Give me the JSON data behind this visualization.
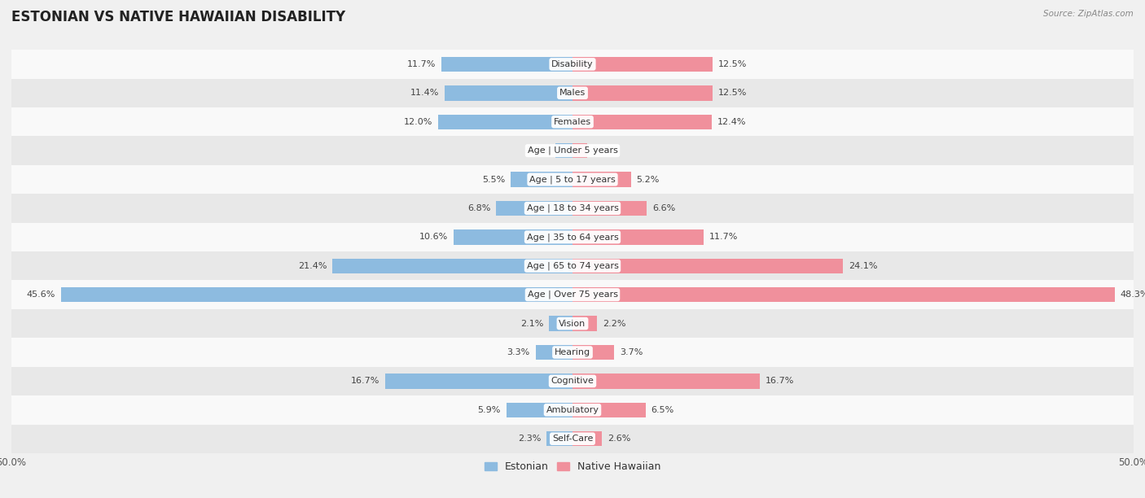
{
  "title": "ESTONIAN VS NATIVE HAWAIIAN DISABILITY",
  "source": "Source: ZipAtlas.com",
  "categories": [
    "Disability",
    "Males",
    "Females",
    "Age | Under 5 years",
    "Age | 5 to 17 years",
    "Age | 18 to 34 years",
    "Age | 35 to 64 years",
    "Age | 65 to 74 years",
    "Age | Over 75 years",
    "Vision",
    "Hearing",
    "Cognitive",
    "Ambulatory",
    "Self-Care"
  ],
  "estonian": [
    11.7,
    11.4,
    12.0,
    1.5,
    5.5,
    6.8,
    10.6,
    21.4,
    45.6,
    2.1,
    3.3,
    16.7,
    5.9,
    2.3
  ],
  "native_hawaiian": [
    12.5,
    12.5,
    12.4,
    1.3,
    5.2,
    6.6,
    11.7,
    24.1,
    48.3,
    2.2,
    3.7,
    16.7,
    6.5,
    2.6
  ],
  "estonian_color": "#8DBBE0",
  "native_hawaiian_color": "#F0909C",
  "bar_height": 0.52,
  "max_value": 50.0,
  "bg_color": "#f0f0f0",
  "row_colors_even": "#f9f9f9",
  "row_colors_odd": "#e8e8e8",
  "title_fontsize": 12,
  "value_fontsize": 8,
  "cat_fontsize": 8,
  "axis_label_fontsize": 8.5,
  "legend_fontsize": 9
}
